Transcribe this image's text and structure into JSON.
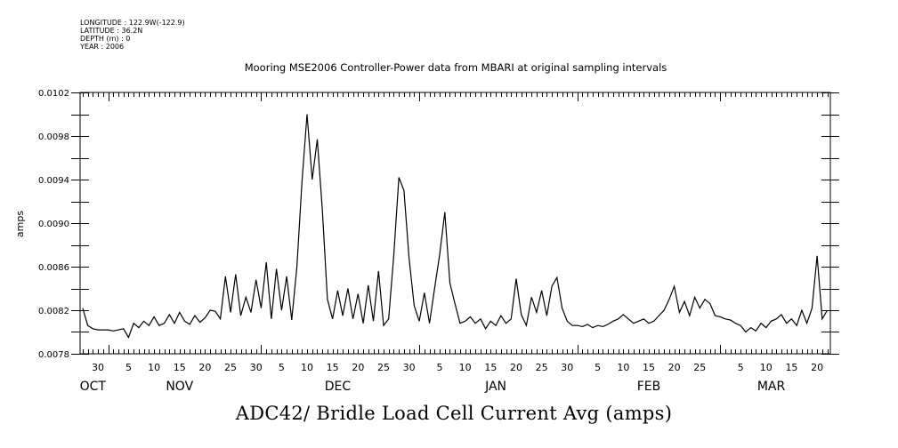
{
  "header": {
    "longitude": "LONGITUDE : 122.9W(-122.9)",
    "latitude": "LATITUDE : 36.2N",
    "depth": "DEPTH (m) : 0",
    "year": "YEAR : 2006"
  },
  "chart_data": {
    "type": "line",
    "title": "Mooring MSE2006 Controller-Power data from MBARI at original sampling intervals",
    "xlabel": "ADC42/ Bridle Load Cell Current Avg (amps)",
    "ylabel": "amps",
    "ylim": [
      0.0078,
      0.0102
    ],
    "y_ticks": [
      "0.0078",
      "0.0082",
      "0.0086",
      "0.0090",
      "0.0094",
      "0.0098",
      "0.0102"
    ],
    "y_minor_step": 0.0002,
    "x_unit": "days since first sample (Oct 27)",
    "xlim": [
      -0.5,
      146.6
    ],
    "month_starts": [
      5,
      35,
      66,
      97,
      125
    ],
    "x_tick_labels": [
      {
        "d": 3,
        "label": "30"
      },
      {
        "d": 9,
        "label": "5"
      },
      {
        "d": 14,
        "label": "10"
      },
      {
        "d": 19,
        "label": "15"
      },
      {
        "d": 24,
        "label": "20"
      },
      {
        "d": 29,
        "label": "25"
      },
      {
        "d": 34,
        "label": "30"
      },
      {
        "d": 39,
        "label": "5"
      },
      {
        "d": 44,
        "label": "10"
      },
      {
        "d": 49,
        "label": "15"
      },
      {
        "d": 54,
        "label": "20"
      },
      {
        "d": 59,
        "label": "25"
      },
      {
        "d": 64,
        "label": "30"
      },
      {
        "d": 70,
        "label": "5"
      },
      {
        "d": 75,
        "label": "10"
      },
      {
        "d": 80,
        "label": "15"
      },
      {
        "d": 85,
        "label": "20"
      },
      {
        "d": 90,
        "label": "25"
      },
      {
        "d": 95,
        "label": "30"
      },
      {
        "d": 101,
        "label": "5"
      },
      {
        "d": 106,
        "label": "10"
      },
      {
        "d": 111,
        "label": "15"
      },
      {
        "d": 116,
        "label": "20"
      },
      {
        "d": 121,
        "label": "25"
      },
      {
        "d": 129,
        "label": "5"
      },
      {
        "d": 134,
        "label": "10"
      },
      {
        "d": 139,
        "label": "15"
      },
      {
        "d": 144,
        "label": "20"
      }
    ],
    "month_labels": [
      {
        "d": 2,
        "label": "OCT"
      },
      {
        "d": 19,
        "label": "NOV"
      },
      {
        "d": 50,
        "label": "DEC"
      },
      {
        "d": 81,
        "label": "JAN"
      },
      {
        "d": 111,
        "label": "FEB"
      },
      {
        "d": 135,
        "label": "MAR"
      }
    ],
    "series": [
      {
        "name": "ADC42 Bridle Load Cell Current Avg",
        "x_start": 0,
        "x_step": 1,
        "values": [
          0.00822,
          0.00806,
          0.00803,
          0.00802,
          0.00802,
          0.00802,
          0.00801,
          0.00802,
          0.00803,
          0.00795,
          0.00808,
          0.00804,
          0.0081,
          0.00806,
          0.00814,
          0.00806,
          0.00808,
          0.00816,
          0.00808,
          0.00818,
          0.0081,
          0.00807,
          0.00815,
          0.00809,
          0.00813,
          0.0082,
          0.00819,
          0.00812,
          0.00851,
          0.00818,
          0.00853,
          0.00815,
          0.00832,
          0.00818,
          0.00848,
          0.00822,
          0.00864,
          0.00812,
          0.00858,
          0.0082,
          0.00851,
          0.00811,
          0.0086,
          0.00938,
          0.01,
          0.0094,
          0.00977,
          0.00912,
          0.0083,
          0.00812,
          0.00838,
          0.00815,
          0.0084,
          0.00812,
          0.00835,
          0.00808,
          0.00843,
          0.0081,
          0.00856,
          0.00806,
          0.00812,
          0.0087,
          0.00942,
          0.0093,
          0.00868,
          0.00824,
          0.0081,
          0.00836,
          0.00808,
          0.0084,
          0.00871,
          0.0091,
          0.00845,
          0.00826,
          0.00808,
          0.0081,
          0.00814,
          0.00808,
          0.00812,
          0.00803,
          0.0081,
          0.00806,
          0.00815,
          0.00808,
          0.00812,
          0.00849,
          0.00816,
          0.00806,
          0.00832,
          0.00818,
          0.00838,
          0.00815,
          0.00842,
          0.0085,
          0.00822,
          0.0081,
          0.00806,
          0.00806,
          0.00805,
          0.00807,
          0.00804,
          0.00806,
          0.00805,
          0.00807,
          0.0081,
          0.00812,
          0.00816,
          0.00812,
          0.00808,
          0.0081,
          0.00812,
          0.00808,
          0.0081,
          0.00815,
          0.0082,
          0.0083,
          0.00842,
          0.00818,
          0.00828,
          0.00815,
          0.00832,
          0.00822,
          0.0083,
          0.00826,
          0.00815,
          0.00814,
          0.00812,
          0.00811,
          0.00808,
          0.00806,
          0.008,
          0.00804,
          0.00801,
          0.00808,
          0.00804,
          0.0081,
          0.00812,
          0.00816,
          0.00808,
          0.00812,
          0.00806,
          0.0082,
          0.00808,
          0.00822,
          0.0087,
          0.00812,
          0.0082
        ]
      }
    ],
    "grid": false,
    "legend": "none"
  }
}
